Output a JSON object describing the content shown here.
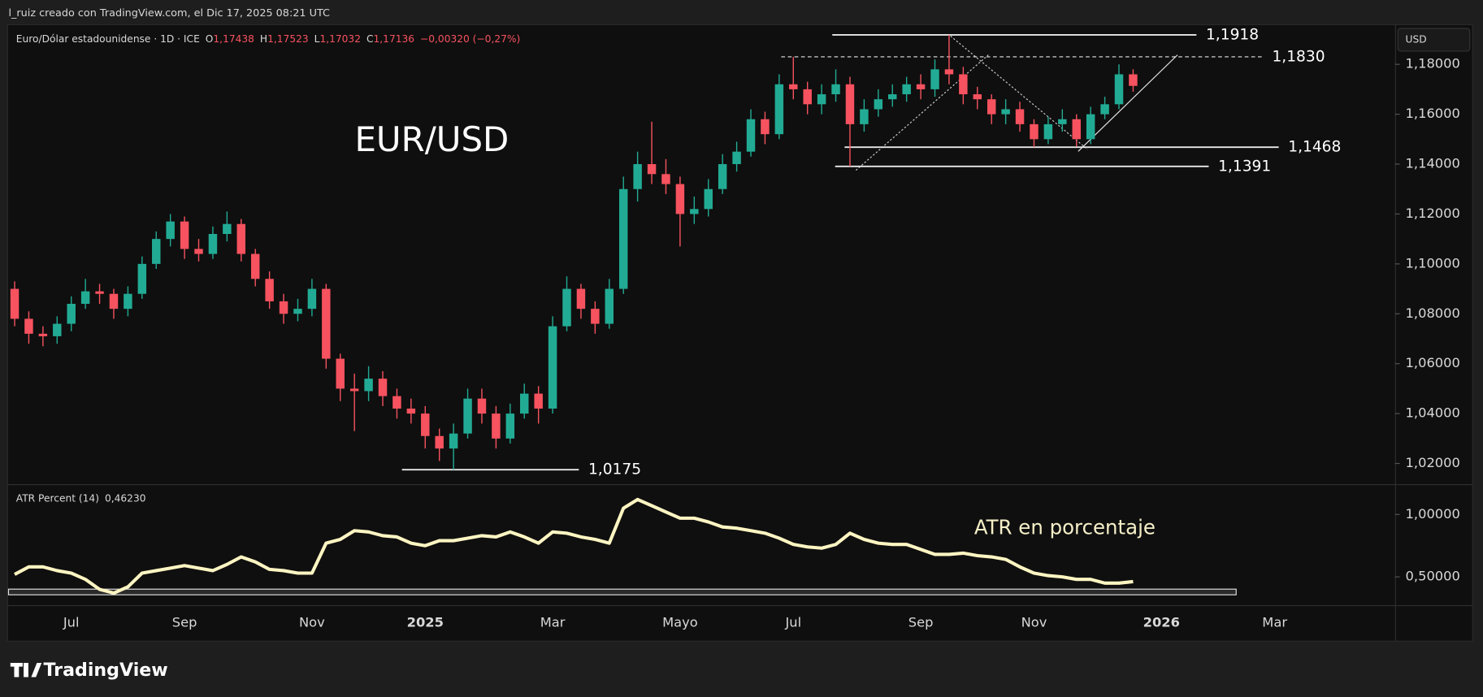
{
  "credit": "l_ruiz creado con TradingView.com, el Dic 17, 2025 08:21 UTC",
  "header": {
    "symbol": "Euro/Dólar estadounidense · 1D · ICE",
    "ohlc": [
      {
        "key": "O",
        "value": "1,17438"
      },
      {
        "key": "H",
        "value": "1,17523"
      },
      {
        "key": "L",
        "value": "1,17032"
      },
      {
        "key": "C",
        "value": "1,17136"
      }
    ],
    "change": "−0,00320 (−0,27%)"
  },
  "axis_currency": "USD",
  "brand": "TradingView",
  "chart_data": [
    {
      "type": "candlestick",
      "title": "EUR/USD",
      "up_color": "#22ab94",
      "down_color": "#f7525f",
      "categories": [
        null,
        null,
        null,
        null,
        "Jul",
        null,
        null,
        null,
        null,
        null,
        null,
        null,
        "Sep",
        null,
        null,
        null,
        null,
        null,
        null,
        null,
        null,
        "Nov",
        null,
        null,
        null,
        null,
        null,
        null,
        null,
        "2025",
        null,
        null,
        null,
        null,
        null,
        null,
        null,
        null,
        "Mar",
        null,
        null,
        null,
        null,
        null,
        null,
        null,
        null,
        "Mayo",
        null,
        null,
        null,
        null,
        null,
        null,
        null,
        "Jul",
        null,
        null,
        null,
        null,
        null,
        null,
        null,
        null,
        "Sep",
        null,
        null,
        null,
        null,
        null,
        null,
        null,
        "Nov",
        null,
        null,
        null,
        null,
        null,
        null,
        null,
        null,
        "2026",
        null,
        null,
        null,
        null,
        null,
        null,
        null,
        "Mar",
        null,
        null,
        null,
        null,
        null,
        null,
        null,
        null
      ],
      "open": [
        1.09,
        1.078,
        1.072,
        1.071,
        1.076,
        1.084,
        1.089,
        1.088,
        1.082,
        1.088,
        1.1,
        1.11,
        1.117,
        1.106,
        1.104,
        1.112,
        1.116,
        1.104,
        1.094,
        1.085,
        1.08,
        1.082,
        1.09,
        1.062,
        1.05,
        1.049,
        1.054,
        1.047,
        1.042,
        1.04,
        1.031,
        1.026,
        1.032,
        1.046,
        1.04,
        1.03,
        1.04,
        1.048,
        1.042,
        1.075,
        1.09,
        1.082,
        1.076,
        1.09,
        1.13,
        1.14,
        1.136,
        1.132,
        1.12,
        1.122,
        1.13,
        1.14,
        1.145,
        1.158,
        1.152,
        1.172,
        1.17,
        1.164,
        1.168,
        1.172,
        1.156,
        1.162,
        1.166,
        1.168,
        1.172,
        1.17,
        1.178,
        1.176,
        1.168,
        1.166,
        1.16,
        1.162,
        1.156,
        1.15,
        1.156,
        1.158,
        1.15,
        1.16,
        1.164,
        1.176,
        null,
        null,
        null,
        null,
        null,
        null,
        null,
        null,
        null,
        null,
        null,
        null,
        null,
        null,
        null,
        null,
        null,
        null
      ],
      "high": [
        1.093,
        1.081,
        1.075,
        1.079,
        1.087,
        1.094,
        1.092,
        1.09,
        1.091,
        1.103,
        1.113,
        1.12,
        1.119,
        1.11,
        1.115,
        1.121,
        1.118,
        1.106,
        1.097,
        1.088,
        1.086,
        1.094,
        1.092,
        1.064,
        1.056,
        1.059,
        1.057,
        1.05,
        1.046,
        1.043,
        1.034,
        1.036,
        1.05,
        1.05,
        1.043,
        1.044,
        1.052,
        1.051,
        1.079,
        1.095,
        1.092,
        1.085,
        1.094,
        1.135,
        1.145,
        1.157,
        1.142,
        1.135,
        1.127,
        1.134,
        1.144,
        1.149,
        1.162,
        1.161,
        1.176,
        1.183,
        1.173,
        1.172,
        1.178,
        1.175,
        1.166,
        1.17,
        1.172,
        1.175,
        1.176,
        1.182,
        1.1918,
        1.179,
        1.171,
        1.168,
        1.166,
        1.165,
        1.158,
        1.159,
        1.162,
        1.16,
        1.163,
        1.167,
        1.18,
        1.178,
        null,
        null,
        null,
        null,
        null,
        null,
        null,
        null,
        null,
        null,
        null,
        null,
        null,
        null,
        null,
        null,
        null,
        null
      ],
      "low": [
        1.075,
        1.068,
        1.067,
        1.068,
        1.073,
        1.082,
        1.084,
        1.078,
        1.079,
        1.086,
        1.098,
        1.107,
        1.102,
        1.101,
        1.102,
        1.109,
        1.101,
        1.091,
        1.082,
        1.076,
        1.077,
        1.079,
        1.058,
        1.045,
        1.033,
        1.045,
        1.043,
        1.038,
        1.036,
        1.026,
        1.021,
        1.0175,
        1.03,
        1.036,
        1.026,
        1.028,
        1.038,
        1.036,
        1.04,
        1.073,
        1.078,
        1.072,
        1.074,
        1.088,
        1.125,
        1.132,
        1.128,
        1.107,
        1.116,
        1.119,
        1.128,
        1.137,
        1.143,
        1.148,
        1.15,
        1.166,
        1.16,
        1.16,
        1.165,
        1.1391,
        1.153,
        1.159,
        1.163,
        1.165,
        1.166,
        1.167,
        1.172,
        1.164,
        1.162,
        1.156,
        1.156,
        1.153,
        1.1468,
        1.148,
        1.153,
        1.147,
        1.148,
        1.158,
        1.162,
        1.169,
        null,
        null,
        null,
        null,
        null,
        null,
        null,
        null,
        null,
        null,
        null,
        null,
        null,
        null,
        null,
        null,
        null,
        null
      ],
      "close": [
        1.078,
        1.072,
        1.071,
        1.076,
        1.084,
        1.089,
        1.088,
        1.082,
        1.088,
        1.1,
        1.11,
        1.117,
        1.106,
        1.104,
        1.112,
        1.116,
        1.104,
        1.094,
        1.085,
        1.08,
        1.082,
        1.09,
        1.062,
        1.05,
        1.049,
        1.054,
        1.047,
        1.042,
        1.04,
        1.031,
        1.026,
        1.032,
        1.046,
        1.04,
        1.03,
        1.04,
        1.048,
        1.042,
        1.075,
        1.09,
        1.082,
        1.076,
        1.09,
        1.13,
        1.14,
        1.136,
        1.132,
        1.12,
        1.122,
        1.13,
        1.14,
        1.145,
        1.158,
        1.152,
        1.172,
        1.17,
        1.164,
        1.168,
        1.172,
        1.156,
        1.162,
        1.166,
        1.168,
        1.172,
        1.17,
        1.178,
        1.176,
        1.168,
        1.166,
        1.16,
        1.162,
        1.156,
        1.15,
        1.156,
        1.158,
        1.15,
        1.16,
        1.164,
        1.176,
        1.17136,
        null,
        null,
        null,
        null,
        null,
        null,
        null,
        null,
        null,
        null,
        null,
        null,
        null,
        null,
        null,
        null,
        null,
        null
      ],
      "ylim": [
        1.0117,
        1.1959
      ],
      "yticks": [
        {
          "value": 1.02,
          "label": "1,02000"
        },
        {
          "value": 1.04,
          "label": "1,04000"
        },
        {
          "value": 1.06,
          "label": "1,06000"
        },
        {
          "value": 1.08,
          "label": "1,08000"
        },
        {
          "value": 1.1,
          "label": "1,10000"
        },
        {
          "value": 1.12,
          "label": "1,12000"
        },
        {
          "value": 1.14,
          "label": "1,14000"
        },
        {
          "value": 1.16,
          "label": "1,16000"
        },
        {
          "value": 1.18,
          "label": "1,18000"
        }
      ],
      "levels": [
        {
          "value": 1.1918,
          "label": "1,1918"
        },
        {
          "value": 1.183,
          "label": "1,1830"
        },
        {
          "value": 1.1468,
          "label": "1,1468"
        },
        {
          "value": 1.1391,
          "label": "1,1391"
        },
        {
          "value": 1.0175,
          "label": "1,0175"
        }
      ]
    },
    {
      "type": "line",
      "title": "ATR Percent (14)",
      "annotation": "ATR en porcentaje",
      "color": "#fff5c2",
      "legend_value": {
        "value": 0.4623,
        "label": "0,46230"
      },
      "values": [
        0.52,
        0.58,
        0.58,
        0.55,
        0.53,
        0.48,
        0.4,
        0.37,
        0.42,
        0.53,
        0.55,
        0.57,
        0.59,
        0.57,
        0.55,
        0.6,
        0.66,
        0.62,
        0.56,
        0.55,
        0.53,
        0.53,
        0.77,
        0.8,
        0.87,
        0.86,
        0.83,
        0.82,
        0.77,
        0.75,
        0.79,
        0.79,
        0.81,
        0.83,
        0.82,
        0.86,
        0.82,
        0.77,
        0.86,
        0.85,
        0.82,
        0.8,
        0.77,
        1.05,
        1.12,
        1.07,
        1.02,
        0.97,
        0.97,
        0.94,
        0.9,
        0.89,
        0.87,
        0.85,
        0.81,
        0.76,
        0.74,
        0.73,
        0.76,
        0.85,
        0.8,
        0.77,
        0.76,
        0.76,
        0.72,
        0.68,
        0.68,
        0.69,
        0.67,
        0.66,
        0.64,
        0.58,
        0.53,
        0.51,
        0.5,
        0.48,
        0.48,
        0.45,
        0.45,
        0.4623,
        null,
        null,
        null,
        null,
        null,
        null,
        null,
        null,
        null,
        null,
        null,
        null,
        null,
        null,
        null,
        null,
        null,
        null
      ],
      "ylim": [
        0.273,
        1.235
      ],
      "yticks": [
        {
          "value": 0.5,
          "label": "0,50000"
        },
        {
          "value": 1.0,
          "label": "1,00000"
        }
      ]
    }
  ]
}
